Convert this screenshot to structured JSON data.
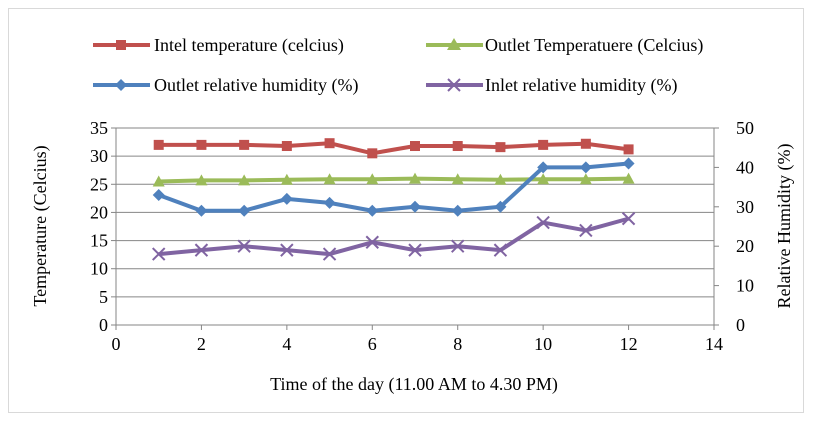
{
  "chart_data": {
    "type": "line",
    "xlabel": "Time of the day (11.00 AM to 4.30 PM)",
    "ylabel_left": "Temperature (Celcius)",
    "ylabel_right": "Relative Humidity (%)",
    "xlim": [
      0,
      14
    ],
    "ylim_left": [
      0,
      35
    ],
    "ylim_right": [
      0,
      50
    ],
    "x_ticks": [
      "0",
      "2",
      "4",
      "6",
      "8",
      "10",
      "12",
      "14"
    ],
    "y_ticks_left": [
      "0",
      "5",
      "10",
      "15",
      "20",
      "25",
      "30",
      "35"
    ],
    "y_ticks_right": [
      "0",
      "10",
      "20",
      "30",
      "40",
      "50"
    ],
    "grid": "horizontal",
    "legend_position": "top",
    "x": [
      1,
      2,
      3,
      4,
      5,
      6,
      7,
      8,
      9,
      10,
      11,
      12
    ],
    "series": [
      {
        "name": "Intel temperature (celcius)",
        "axis": "left",
        "color": "#c0504d",
        "marker": "square",
        "values": [
          32,
          32,
          32,
          31.8,
          32.3,
          30.5,
          31.8,
          31.8,
          31.6,
          32,
          32.2,
          31.2
        ]
      },
      {
        "name": "Outlet Temperatuere (Celcius)",
        "axis": "left",
        "color": "#9bbb59",
        "marker": "triangle",
        "values": [
          25.5,
          25.7,
          25.7,
          25.8,
          25.9,
          25.9,
          26,
          25.9,
          25.8,
          25.9,
          25.9,
          26
        ]
      },
      {
        "name": "Outlet relative humidity (%)",
        "axis": "right",
        "color": "#4f81bd",
        "marker": "diamond",
        "values": [
          33,
          29,
          29,
          32,
          31,
          29,
          30,
          29,
          30,
          40,
          40,
          41
        ]
      },
      {
        "name": "Inlet relative humidity (%)",
        "axis": "right",
        "color": "#8064a2",
        "marker": "x",
        "values": [
          18,
          19,
          20,
          19,
          18,
          21,
          19,
          20,
          19,
          26,
          24,
          27
        ]
      }
    ]
  }
}
